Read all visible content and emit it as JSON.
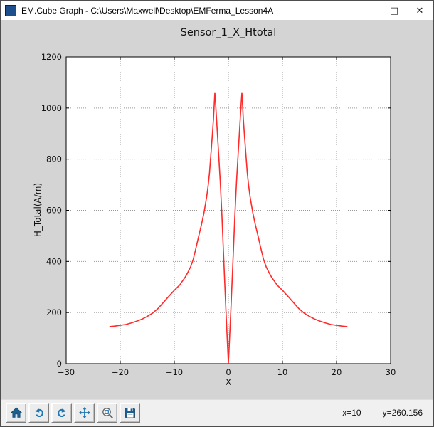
{
  "window": {
    "title": "EM.Cube Graph -  C:\\Users\\Maxwell\\Desktop\\EMFerma_Lesson4A",
    "controls": {
      "minimize": "–",
      "maximize": "□",
      "close": "✕"
    }
  },
  "toolbar": {
    "icons": [
      "home-icon",
      "back-arrow-icon",
      "forward-arrow-icon",
      "pan-arrows-icon",
      "zoom-to-rect-icon",
      "save-icon"
    ],
    "status": {
      "x_label": "x=10",
      "y_label": "y=260.156"
    }
  },
  "colors": {
    "figure_bg": "#d4d4d4",
    "plot_bg": "#ffffff",
    "curve": "#ff2a2a",
    "grid": "#999999",
    "axis": "#000000",
    "icon_blue": "#2077b4",
    "icon_dark": "#1a5f8e"
  },
  "chart_data": {
    "type": "line",
    "title": "Sensor_1_X_Htotal",
    "xlabel": "X",
    "ylabel": "H_Total(A/m)",
    "xlim": [
      -30,
      30
    ],
    "ylim": [
      0,
      1200
    ],
    "xticks": [
      -30,
      -20,
      -10,
      0,
      10,
      20,
      30
    ],
    "x_tick_labels": [
      "−30",
      "−20",
      "−10",
      "0",
      "10",
      "20",
      "30"
    ],
    "yticks": [
      0,
      200,
      400,
      600,
      800,
      1000,
      1200
    ],
    "y_tick_labels": [
      "0",
      "200",
      "400",
      "600",
      "800",
      "1000",
      "1200"
    ],
    "grid": "dotted",
    "legend": "none",
    "series": [
      {
        "name": "H_Total",
        "color": "#ff2a2a",
        "points": [
          [
            -22,
            145
          ],
          [
            -21,
            147
          ],
          [
            -20,
            150
          ],
          [
            -19,
            153
          ],
          [
            -18,
            159
          ],
          [
            -17,
            166
          ],
          [
            -16,
            174
          ],
          [
            -15,
            185
          ],
          [
            -14,
            198
          ],
          [
            -13,
            216
          ],
          [
            -12,
            240
          ],
          [
            -11,
            264
          ],
          [
            -10,
            287
          ],
          [
            -9,
            308
          ],
          [
            -8,
            338
          ],
          [
            -7.5,
            357
          ],
          [
            -7,
            378
          ],
          [
            -6.5,
            408
          ],
          [
            -6,
            452
          ],
          [
            -5.5,
            498
          ],
          [
            -5,
            542
          ],
          [
            -4.5,
            592
          ],
          [
            -4,
            655
          ],
          [
            -3.75,
            695
          ],
          [
            -3.5,
            745
          ],
          [
            -3.25,
            815
          ],
          [
            -3,
            885
          ],
          [
            -2.75,
            960
          ],
          [
            -2.6,
            1020
          ],
          [
            -2.5,
            1060
          ],
          [
            -2.35,
            1015
          ],
          [
            -2.2,
            960
          ],
          [
            -2,
            890
          ],
          [
            -1.8,
            820
          ],
          [
            -1.5,
            710
          ],
          [
            -1.2,
            580
          ],
          [
            -1,
            480
          ],
          [
            -0.8,
            380
          ],
          [
            -0.5,
            230
          ],
          [
            -0.2,
            90
          ],
          [
            0,
            2
          ],
          [
            0.2,
            90
          ],
          [
            0.5,
            230
          ],
          [
            0.8,
            380
          ],
          [
            1,
            480
          ],
          [
            1.2,
            580
          ],
          [
            1.5,
            710
          ],
          [
            1.8,
            820
          ],
          [
            2,
            890
          ],
          [
            2.2,
            960
          ],
          [
            2.35,
            1015
          ],
          [
            2.5,
            1060
          ],
          [
            2.6,
            1020
          ],
          [
            2.75,
            960
          ],
          [
            3,
            885
          ],
          [
            3.25,
            815
          ],
          [
            3.5,
            745
          ],
          [
            3.75,
            695
          ],
          [
            4,
            655
          ],
          [
            4.5,
            592
          ],
          [
            5,
            542
          ],
          [
            5.5,
            498
          ],
          [
            6,
            452
          ],
          [
            6.5,
            408
          ],
          [
            7,
            378
          ],
          [
            7.5,
            357
          ],
          [
            8,
            338
          ],
          [
            9,
            308
          ],
          [
            10,
            287
          ],
          [
            11,
            264
          ],
          [
            12,
            240
          ],
          [
            13,
            216
          ],
          [
            14,
            198
          ],
          [
            15,
            185
          ],
          [
            16,
            174
          ],
          [
            17,
            166
          ],
          [
            18,
            159
          ],
          [
            19,
            153
          ],
          [
            20,
            150
          ],
          [
            21,
            147
          ],
          [
            22,
            145
          ]
        ]
      }
    ]
  }
}
